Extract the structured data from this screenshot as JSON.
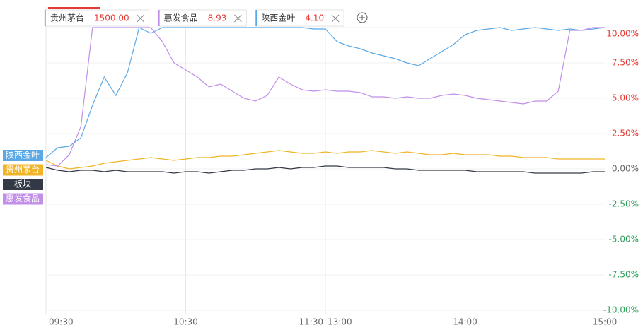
{
  "chart_data": {
    "type": "line",
    "legend": [
      {
        "name": "贵州茅台",
        "price": "1500.00",
        "color": "#f0b429"
      },
      {
        "name": "惠发食品",
        "price": "8.93",
        "color": "#c18ee8"
      },
      {
        "name": "陕西金叶",
        "price": "4.10",
        "color": "#5aa9e6"
      }
    ],
    "x": [
      "09:30",
      "09:35",
      "09:40",
      "09:45",
      "09:50",
      "09:55",
      "10:00",
      "10:05",
      "10:10",
      "10:15",
      "10:20",
      "10:25",
      "10:30",
      "10:35",
      "10:40",
      "10:45",
      "10:50",
      "10:55",
      "11:00",
      "11:05",
      "11:10",
      "11:15",
      "11:20",
      "11:25",
      "11:30",
      "13:05",
      "13:10",
      "13:15",
      "13:20",
      "13:25",
      "13:30",
      "13:35",
      "13:40",
      "13:45",
      "13:50",
      "13:55",
      "14:00",
      "14:05",
      "14:10",
      "14:15",
      "14:20",
      "14:25",
      "14:30",
      "14:35",
      "14:40",
      "14:45",
      "14:50",
      "14:55",
      "15:00"
    ],
    "series": [
      {
        "name": "陕西金叶",
        "color": "#5aa9e6",
        "values": [
          0.8,
          1.5,
          1.6,
          2.2,
          4.5,
          6.5,
          5.2,
          6.8,
          10,
          9.6,
          10,
          10,
          10,
          10,
          10,
          10,
          10,
          10,
          10,
          10,
          10,
          10,
          10,
          9.9,
          9.9,
          9.0,
          8.7,
          8.5,
          8.2,
          8.0,
          7.8,
          7.5,
          7.3,
          7.8,
          8.3,
          8.8,
          9.5,
          9.8,
          9.9,
          10,
          9.8,
          9.9,
          10,
          9.9,
          9.8,
          9.9,
          9.8,
          9.9,
          10
        ]
      },
      {
        "name": "贵州茅台",
        "color": "#f0b429",
        "values": [
          0.6,
          0.2,
          0.0,
          0.1,
          0.2,
          0.4,
          0.5,
          0.6,
          0.7,
          0.8,
          0.7,
          0.6,
          0.7,
          0.8,
          0.8,
          0.9,
          0.9,
          1.0,
          1.1,
          1.2,
          1.3,
          1.2,
          1.1,
          1.1,
          1.2,
          1.1,
          1.2,
          1.2,
          1.3,
          1.2,
          1.1,
          1.2,
          1.1,
          1.0,
          1.0,
          1.1,
          1.0,
          1.0,
          1.0,
          0.9,
          0.9,
          0.8,
          0.8,
          0.8,
          0.7,
          0.7,
          0.7,
          0.7,
          0.7
        ]
      },
      {
        "name": "板块",
        "color": "#333a45",
        "values": [
          0.1,
          -0.1,
          -0.2,
          -0.1,
          -0.1,
          -0.2,
          -0.1,
          -0.2,
          -0.2,
          -0.2,
          -0.2,
          -0.3,
          -0.2,
          -0.2,
          -0.3,
          -0.2,
          -0.1,
          -0.1,
          0.0,
          0.0,
          0.1,
          0.0,
          0.1,
          0.1,
          0.2,
          0.2,
          0.1,
          0.1,
          0.1,
          0.1,
          0.0,
          0.0,
          -0.1,
          -0.1,
          -0.1,
          -0.1,
          -0.1,
          -0.2,
          -0.2,
          -0.2,
          -0.2,
          -0.2,
          -0.3,
          -0.3,
          -0.3,
          -0.3,
          -0.3,
          -0.2,
          -0.2
        ]
      },
      {
        "name": "惠发食品",
        "color": "#c18ee8",
        "values": [
          0.3,
          0.2,
          1.0,
          3.0,
          10,
          10,
          10,
          10,
          10,
          10,
          9.0,
          7.5,
          7.0,
          6.5,
          5.8,
          6.0,
          5.5,
          5.0,
          4.8,
          5.2,
          6.5,
          6.0,
          5.6,
          5.5,
          5.6,
          5.5,
          5.5,
          5.4,
          5.1,
          5.1,
          5.0,
          5.1,
          5.0,
          5.0,
          5.2,
          5.3,
          5.2,
          5.0,
          4.9,
          4.8,
          4.7,
          4.6,
          4.8,
          4.8,
          5.5,
          9.8,
          9.8,
          10,
          10
        ]
      }
    ],
    "xticks": [
      "09:30",
      "10:30",
      "11:30",
      "13:00",
      "14:00",
      "15:00"
    ],
    "ylim": [
      -10,
      10
    ],
    "yticks": [
      {
        "value": 10,
        "label": "10.00%"
      },
      {
        "value": 7.5,
        "label": "7.50%"
      },
      {
        "value": 5,
        "label": "5.00%"
      },
      {
        "value": 2.5,
        "label": "2.50%"
      },
      {
        "value": 0,
        "label": "0.00%"
      },
      {
        "value": -2.5,
        "label": "-2.50%"
      },
      {
        "value": -5,
        "label": "-5.00%"
      },
      {
        "value": -7.5,
        "label": "-7.50%"
      },
      {
        "value": -10,
        "label": "-10.00%"
      }
    ],
    "grid": true
  }
}
